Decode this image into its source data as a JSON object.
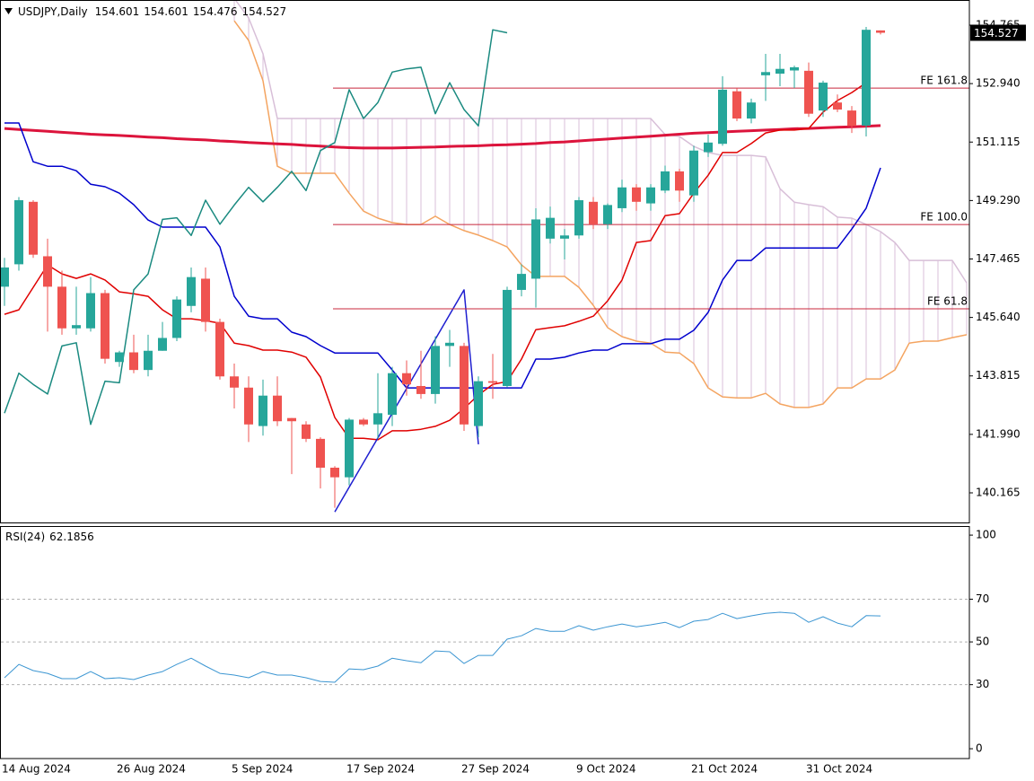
{
  "chart_data": {
    "type": "candlestick",
    "symbol": "USDJPY,Daily",
    "categories": [
      "14 Aug 2024",
      null,
      null,
      null,
      null,
      null,
      null,
      null,
      "26 Aug 2024",
      null,
      null,
      null,
      null,
      null,
      null,
      null,
      "5 Sep 2024",
      null,
      null,
      null,
      null,
      null,
      null,
      null,
      "17 Sep 2024",
      null,
      null,
      null,
      null,
      null,
      null,
      null,
      "27 Sep 2024",
      null,
      null,
      null,
      null,
      null,
      null,
      null,
      "9 Oct 2024",
      null,
      null,
      null,
      null,
      null,
      null,
      null,
      "21 Oct 2024",
      null,
      null,
      null,
      null,
      null,
      null,
      null,
      "31 Oct 2024",
      null,
      null,
      null,
      null,
      null,
      null,
      null,
      null,
      null,
      null,
      null
    ],
    "ylim": [
      139.24,
      155.55
    ],
    "yticks": [
      140.165,
      {
        "value": 141.99,
        "label": "141.990"
      },
      143.815,
      {
        "value": 145.64,
        "label": "145.640"
      },
      147.465,
      {
        "value": 149.29,
        "label": "149.290"
      },
      151.115,
      {
        "value": 152.94,
        "label": "152.940"
      },
      154.765
    ],
    "candles": {
      "up_color": "#26a69a",
      "down_color": "#ef5350",
      "open": [
        146.6,
        147.3,
        149.25,
        147.55,
        146.6,
        145.3,
        145.3,
        146.4,
        144.25,
        144.55,
        144.0,
        144.6,
        145.0,
        146.0,
        146.85,
        145.5,
        143.8,
        143.45,
        142.25,
        143.2,
        142.5,
        142.3,
        141.85,
        140.95,
        140.65,
        142.45,
        142.3,
        142.6,
        143.9,
        143.5,
        143.25,
        144.75,
        144.75,
        142.25,
        143.65,
        143.5,
        146.5,
        146.85,
        148.1,
        148.1,
        148.2,
        149.25,
        148.55,
        149.05,
        149.7,
        149.2,
        149.6,
        150.2,
        149.45,
        150.8,
        151.06,
        152.7,
        151.85,
        153.2,
        153.25,
        153.35,
        153.34,
        152.1,
        152.35,
        152.1,
        151.63,
        154.601,
        null,
        null,
        null,
        null,
        null,
        null
      ],
      "high": [
        147.5,
        149.4,
        149.3,
        148.1,
        147.1,
        146.6,
        146.9,
        146.5,
        144.6,
        145.1,
        145.1,
        145.5,
        146.3,
        147.2,
        147.2,
        145.6,
        144.2,
        143.8,
        143.7,
        143.8,
        142.5,
        142.4,
        141.9,
        141.0,
        142.5,
        142.5,
        143.9,
        144.1,
        144.3,
        144.6,
        145.05,
        145.25,
        144.85,
        143.8,
        144.5,
        146.6,
        147.3,
        149.05,
        149.1,
        148.4,
        149.4,
        149.4,
        149.2,
        149.94,
        149.8,
        149.8,
        150.38,
        150.28,
        151.0,
        151.35,
        153.17,
        152.8,
        152.47,
        153.87,
        153.87,
        153.5,
        153.6,
        153.03,
        152.6,
        152.24,
        154.71,
        154.601,
        null,
        null,
        null,
        null,
        null,
        null
      ],
      "low": [
        146.0,
        147.1,
        147.5,
        145.2,
        145.1,
        145.1,
        145.2,
        144.2,
        144.1,
        143.9,
        143.8,
        144.6,
        144.9,
        145.8,
        145.2,
        143.7,
        142.8,
        141.75,
        141.95,
        142.25,
        140.75,
        141.75,
        140.3,
        139.7,
        140.4,
        142.25,
        141.85,
        142.25,
        143.2,
        143.1,
        142.95,
        144.1,
        142.1,
        141.9,
        143.1,
        143.45,
        146.3,
        145.95,
        147.95,
        147.45,
        148.1,
        148.4,
        148.4,
        148.93,
        148.97,
        148.97,
        149.52,
        149.25,
        149.25,
        150.65,
        151.0,
        151.77,
        151.7,
        152.4,
        152.86,
        152.8,
        151.9,
        151.9,
        152.05,
        151.4,
        151.29,
        154.476,
        null,
        null,
        null,
        null,
        null,
        null
      ],
      "close": [
        147.2,
        149.3,
        147.6,
        146.6,
        145.3,
        145.4,
        146.4,
        144.35,
        144.55,
        144.0,
        144.6,
        145.0,
        146.2,
        146.9,
        145.5,
        143.8,
        143.45,
        142.3,
        143.2,
        142.4,
        142.4,
        141.85,
        140.95,
        140.65,
        142.45,
        142.3,
        142.65,
        143.9,
        143.55,
        143.25,
        144.75,
        144.85,
        142.3,
        143.65,
        143.6,
        146.5,
        147.0,
        148.7,
        148.75,
        148.2,
        149.3,
        148.55,
        149.15,
        149.7,
        149.25,
        149.7,
        150.2,
        149.6,
        150.85,
        151.1,
        152.75,
        151.85,
        152.35,
        153.3,
        153.4,
        153.45,
        152.0,
        152.97,
        152.13,
        151.62,
        154.62,
        154.527,
        null,
        null,
        null,
        null,
        null,
        null
      ]
    },
    "cloud": {
      "color": "#d8bfd8",
      "span_a": {
        "color": "#f4a460",
        "values": [
          null,
          null,
          null,
          null,
          null,
          null,
          null,
          null,
          null,
          null,
          null,
          null,
          null,
          null,
          null,
          null,
          154.9,
          154.29,
          153.03,
          150.36,
          150.14,
          150.14,
          150.14,
          150.14,
          149.52,
          148.96,
          148.74,
          148.6,
          148.54,
          148.54,
          148.8,
          148.54,
          148.35,
          148.21,
          148.04,
          147.84,
          147.28,
          146.92,
          146.92,
          146.92,
          146.58,
          146.02,
          145.32,
          145.04,
          144.9,
          144.84,
          144.56,
          144.53,
          144.2,
          143.44,
          143.16,
          143.13,
          143.13,
          143.27,
          142.94,
          142.83,
          142.83,
          142.94,
          143.44,
          143.44,
          143.72,
          143.72,
          144.0,
          144.84,
          144.9,
          144.9,
          145.01,
          145.1
        ]
      },
      "span_b": {
        "color": "#d8bfd8",
        "values": [
          null,
          null,
          null,
          null,
          null,
          null,
          null,
          null,
          null,
          null,
          null,
          null,
          null,
          null,
          null,
          null,
          155.6,
          154.99,
          153.87,
          151.85,
          151.85,
          151.85,
          151.85,
          151.85,
          151.85,
          151.85,
          151.85,
          151.85,
          151.85,
          151.85,
          151.85,
          151.85,
          151.85,
          151.85,
          151.85,
          151.85,
          151.85,
          151.85,
          151.85,
          151.85,
          151.85,
          151.85,
          151.85,
          151.85,
          151.85,
          151.85,
          151.35,
          151.29,
          150.98,
          150.79,
          150.7,
          150.7,
          150.7,
          150.65,
          149.66,
          149.24,
          149.16,
          149.1,
          148.77,
          148.74,
          148.54,
          148.32,
          147.98,
          147.42,
          147.42,
          147.42,
          147.42,
          146.72
        ]
      }
    },
    "lines": [
      {
        "color": "#dc143c",
        "width": 3,
        "values": [
          151.54,
          151.51,
          151.48,
          151.45,
          151.42,
          151.39,
          151.36,
          151.34,
          151.32,
          151.3,
          151.27,
          151.25,
          151.22,
          151.2,
          151.18,
          151.15,
          151.13,
          151.1,
          151.08,
          151.06,
          151.04,
          151.01,
          150.99,
          150.96,
          150.94,
          150.93,
          150.93,
          150.93,
          150.94,
          150.95,
          150.96,
          150.98,
          150.99,
          151.0,
          151.02,
          151.03,
          151.05,
          151.07,
          151.1,
          151.12,
          151.15,
          151.18,
          151.21,
          151.24,
          151.27,
          151.3,
          151.33,
          151.36,
          151.39,
          151.41,
          151.43,
          151.45,
          151.47,
          151.49,
          151.51,
          151.53,
          151.54,
          151.56,
          151.58,
          151.59,
          151.61,
          151.63,
          null,
          null,
          null,
          null,
          null,
          null
        ]
      },
      {
        "color": "#0000cd",
        "width": 1.5,
        "values": [
          151.71,
          151.71,
          150.5,
          150.36,
          150.36,
          150.22,
          149.8,
          149.72,
          149.52,
          149.16,
          148.68,
          148.46,
          148.46,
          148.46,
          148.46,
          147.84,
          146.3,
          145.68,
          145.6,
          145.6,
          145.18,
          145.04,
          144.76,
          144.53,
          144.53,
          144.53,
          144.53,
          144.0,
          143.44,
          143.44,
          143.44,
          143.44,
          143.44,
          143.44,
          143.44,
          143.44,
          143.44,
          144.34,
          144.34,
          144.4,
          144.53,
          144.62,
          144.62,
          144.82,
          144.82,
          144.82,
          144.96,
          144.96,
          145.24,
          145.8,
          146.81,
          147.42,
          147.42,
          147.81,
          147.81,
          147.81,
          147.81,
          147.81,
          147.81,
          148.4,
          149.05,
          150.31,
          null,
          null,
          null,
          null,
          null,
          null
        ]
      },
      {
        "color": "#e00000",
        "width": 1.5,
        "values": [
          145.74,
          145.88,
          146.58,
          147.28,
          147.0,
          146.86,
          147.0,
          146.81,
          146.44,
          146.38,
          146.3,
          145.88,
          145.6,
          145.6,
          145.54,
          145.46,
          144.84,
          144.76,
          144.62,
          144.62,
          144.56,
          144.4,
          143.78,
          142.52,
          141.87,
          141.87,
          141.82,
          142.1,
          142.1,
          142.15,
          142.24,
          142.43,
          142.8,
          143.22,
          143.55,
          143.64,
          144.34,
          145.26,
          145.32,
          145.38,
          145.52,
          145.68,
          146.16,
          146.81,
          147.98,
          148.04,
          148.82,
          148.88,
          149.52,
          150.08,
          150.79,
          150.79,
          151.07,
          151.4,
          151.49,
          151.49,
          151.54,
          152.05,
          152.41,
          152.66,
          152.97,
          null,
          null,
          null,
          null,
          null,
          null,
          null
        ]
      },
      {
        "color": "#1a8a80",
        "width": 1.5,
        "values": [
          142.65,
          143.9,
          143.55,
          143.25,
          144.75,
          144.85,
          142.3,
          143.65,
          143.6,
          146.5,
          147.0,
          148.7,
          148.75,
          148.2,
          149.3,
          148.55,
          149.15,
          149.7,
          149.25,
          149.7,
          150.2,
          149.6,
          150.85,
          151.1,
          152.75,
          151.85,
          152.35,
          153.3,
          153.4,
          153.45,
          152.0,
          152.97,
          152.13,
          151.62,
          154.62,
          154.527,
          null,
          null,
          null,
          null,
          null,
          null,
          null,
          null,
          null,
          null,
          null,
          null,
          null,
          null,
          null,
          null,
          null,
          null,
          null,
          null,
          null,
          null,
          null,
          null,
          null,
          null,
          null,
          null,
          null,
          null,
          null,
          null
        ]
      }
    ],
    "zigzag": {
      "color": "#1f1fd0",
      "x": [
        23,
        32,
        33
      ],
      "values": [
        139.57,
        146.5,
        141.68
      ]
    },
    "level_color": "#c8283c",
    "levels": [
      {
        "label": "FE 161.8",
        "value": 152.8
      },
      {
        "label": "FE 100.0",
        "value": 148.54
      },
      {
        "label": "FE 61.8",
        "value": 145.91
      }
    ],
    "rsi": {
      "type": "line",
      "title": "RSI(24)",
      "color": "#3c96d2",
      "ylim": [
        -4.6,
        103.4
      ],
      "yticks": [
        0,
        30,
        50,
        70,
        100
      ],
      "grid": true,
      "values": [
        33.2,
        39.5,
        36.6,
        35.3,
        32.8,
        32.8,
        36.1,
        32.8,
        33.2,
        32.4,
        34.5,
        36.1,
        39.5,
        42.4,
        38.7,
        35.3,
        34.5,
        33.2,
        36.1,
        34.5,
        34.5,
        33.2,
        31.5,
        31.1,
        37.4,
        37.0,
        38.7,
        42.4,
        41.2,
        40.3,
        45.8,
        45.4,
        39.9,
        43.7,
        43.7,
        51.3,
        52.9,
        56.3,
        55.0,
        55.0,
        57.6,
        55.5,
        57.1,
        58.4,
        57.1,
        58.0,
        59.2,
        56.7,
        59.7,
        60.5,
        63.4,
        60.9,
        62.2,
        63.4,
        63.9,
        63.4,
        59.2,
        61.8,
        58.8,
        57.1,
        62.3,
        62.1856,
        null,
        null,
        null,
        null,
        null,
        null
      ]
    }
  }
}
